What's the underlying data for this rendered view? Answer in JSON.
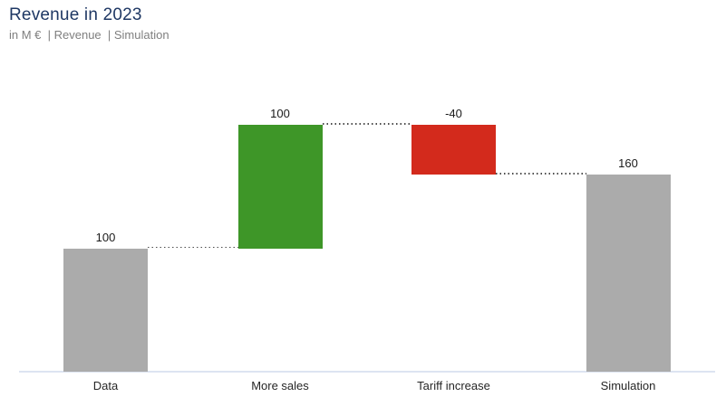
{
  "header": {
    "title": "Revenue in 2023",
    "subtitle": "in M €  | Revenue  | Simulation"
  },
  "chart_data": {
    "type": "bar",
    "subtype": "waterfall",
    "title": "Revenue in 2023",
    "subtitle": "in M €  | Revenue  | Simulation",
    "unit": "M €",
    "categories": [
      "Data",
      "More sales",
      "Tariff increase",
      "Simulation"
    ],
    "segments": [
      {
        "category": "Data",
        "kind": "base",
        "start": 0,
        "end": 100,
        "value": 100,
        "label": "100"
      },
      {
        "category": "More sales",
        "kind": "increase",
        "start": 100,
        "end": 200,
        "value": 100,
        "label": "100"
      },
      {
        "category": "Tariff increase",
        "kind": "decrease",
        "start": 200,
        "end": 160,
        "value": -40,
        "label": "-40"
      },
      {
        "category": "Simulation",
        "kind": "result",
        "start": 0,
        "end": 160,
        "value": 160,
        "label": "160"
      }
    ],
    "connectors": [
      {
        "from": "Data",
        "to": "More sales",
        "level": 100
      },
      {
        "from": "More sales",
        "to": "Tariff increase",
        "level": 200
      },
      {
        "from": "Tariff increase",
        "to": "Simulation",
        "level": 160
      }
    ],
    "ylim": [
      0,
      200
    ],
    "grid": false,
    "colors": {
      "base": "#ababab",
      "increase": "#3e9628",
      "decrease": "#d32a1c",
      "result": "#ababab",
      "title": "#1f3864",
      "subtitle": "#7f7f7f",
      "value_label": "#1a1a1a",
      "category_label": "#262626",
      "connector": "#4d4d4d",
      "axis_line": "#dde4f1"
    }
  }
}
